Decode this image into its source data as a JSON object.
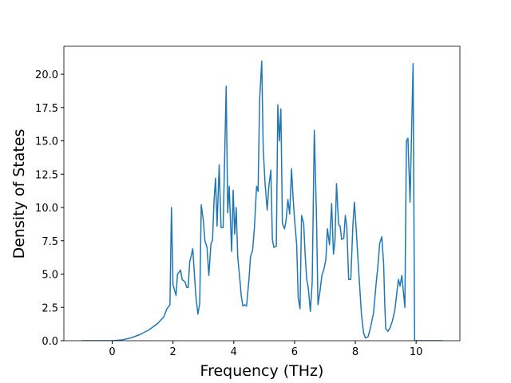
{
  "chart_data": {
    "type": "line",
    "xlabel": "Frequency (THz)",
    "ylabel": "Density of States",
    "xlim": [
      -1.59,
      11.44
    ],
    "ylim": [
      0,
      22.1
    ],
    "xticks": [
      0,
      2,
      4,
      6,
      8,
      10
    ],
    "yticks": [
      {
        "value": 0,
        "label": "0.0"
      },
      {
        "value": 2.5,
        "label": "2.5"
      },
      {
        "value": 5,
        "label": "5.0"
      },
      {
        "value": 7.5,
        "label": "7.5"
      },
      {
        "value": 10,
        "label": "10.0"
      },
      {
        "value": 12.5,
        "label": "12.5"
      },
      {
        "value": 15,
        "label": "15.0"
      },
      {
        "value": 17.5,
        "label": "17.5"
      },
      {
        "value": 20,
        "label": "20.0"
      }
    ],
    "grid": false,
    "series": [
      {
        "color": "#1f77b4",
        "x": [
          -1,
          0,
          0.3,
          0.6,
          0.9,
          1.2,
          1.5,
          1.7,
          1.8,
          1.9,
          1.95,
          2.0,
          2.1,
          2.15,
          2.25,
          2.3,
          2.4,
          2.45,
          2.5,
          2.55,
          2.65,
          2.75,
          2.82,
          2.88,
          2.93,
          3.0,
          3.05,
          3.12,
          3.18,
          3.25,
          3.3,
          3.35,
          3.4,
          3.45,
          3.52,
          3.58,
          3.65,
          3.75,
          3.8,
          3.85,
          3.88,
          3.93,
          3.98,
          4.03,
          4.08,
          4.13,
          4.2,
          4.25,
          4.3,
          4.35,
          4.42,
          4.5,
          4.55,
          4.62,
          4.68,
          4.75,
          4.8,
          4.85,
          4.92,
          4.97,
          5.03,
          5.1,
          5.15,
          5.22,
          5.27,
          5.32,
          5.4,
          5.45,
          5.5,
          5.55,
          5.6,
          5.67,
          5.72,
          5.78,
          5.84,
          5.9,
          5.95,
          6.0,
          6.07,
          6.12,
          6.18,
          6.23,
          6.3,
          6.35,
          6.4,
          6.45,
          6.52,
          6.58,
          6.65,
          6.72,
          6.77,
          6.83,
          6.9,
          6.97,
          7.03,
          7.08,
          7.15,
          7.22,
          7.28,
          7.33,
          7.38,
          7.45,
          7.5,
          7.55,
          7.62,
          7.67,
          7.72,
          7.78,
          7.85,
          7.92,
          7.97,
          8.03,
          8.1,
          8.2,
          8.27,
          8.33,
          8.42,
          8.5,
          8.6,
          8.68,
          8.75,
          8.8,
          8.87,
          8.93,
          8.97,
          9.0,
          9.07,
          9.15,
          9.22,
          9.3,
          9.37,
          9.42,
          9.47,
          9.53,
          9.58,
          9.63,
          9.68,
          9.73,
          9.8,
          9.9,
          9.95,
          10.5,
          10.85
        ],
        "values": [
          0,
          0,
          0.05,
          0.2,
          0.45,
          0.8,
          1.3,
          1.8,
          2.4,
          2.7,
          10.0,
          4.2,
          3.4,
          5.0,
          5.3,
          4.6,
          4.4,
          4.0,
          4.0,
          5.9,
          6.9,
          3.4,
          2.0,
          2.8,
          10.2,
          9.0,
          7.5,
          7.0,
          4.9,
          7.3,
          7.5,
          10.5,
          12.2,
          8.6,
          13.2,
          8.5,
          8.5,
          19.1,
          9.6,
          11.6,
          9.7,
          6.7,
          11.3,
          8.0,
          10.0,
          6.3,
          4.6,
          3.3,
          2.6,
          2.7,
          2.6,
          4.6,
          6.3,
          6.8,
          8.5,
          11.6,
          11.2,
          18.0,
          21.0,
          14.3,
          11.8,
          9.8,
          11.5,
          12.8,
          7.6,
          7.0,
          7.1,
          17.7,
          15.0,
          17.4,
          8.8,
          8.4,
          9.0,
          10.6,
          9.5,
          12.9,
          10.8,
          9.1,
          7.2,
          3.2,
          2.4,
          9.4,
          8.8,
          6.4,
          4.6,
          4.0,
          2.2,
          4.4,
          15.8,
          9.5,
          2.7,
          3.6,
          4.9,
          5.4,
          6.1,
          8.4,
          7.2,
          10.3,
          6.5,
          7.5,
          11.8,
          8.7,
          8.6,
          7.6,
          7.7,
          9.4,
          8.5,
          4.6,
          4.6,
          8.7,
          10.4,
          8.3,
          5.6,
          2.0,
          0.6,
          0.2,
          0.3,
          1.0,
          2.1,
          4.2,
          5.8,
          7.3,
          7.8,
          5.8,
          2.6,
          0.9,
          0.7,
          1.0,
          1.5,
          2.3,
          3.7,
          4.6,
          4.1,
          4.9,
          3.7,
          2.5,
          15.0,
          15.2,
          10.4,
          20.8,
          0,
          0,
          0
        ]
      }
    ]
  }
}
